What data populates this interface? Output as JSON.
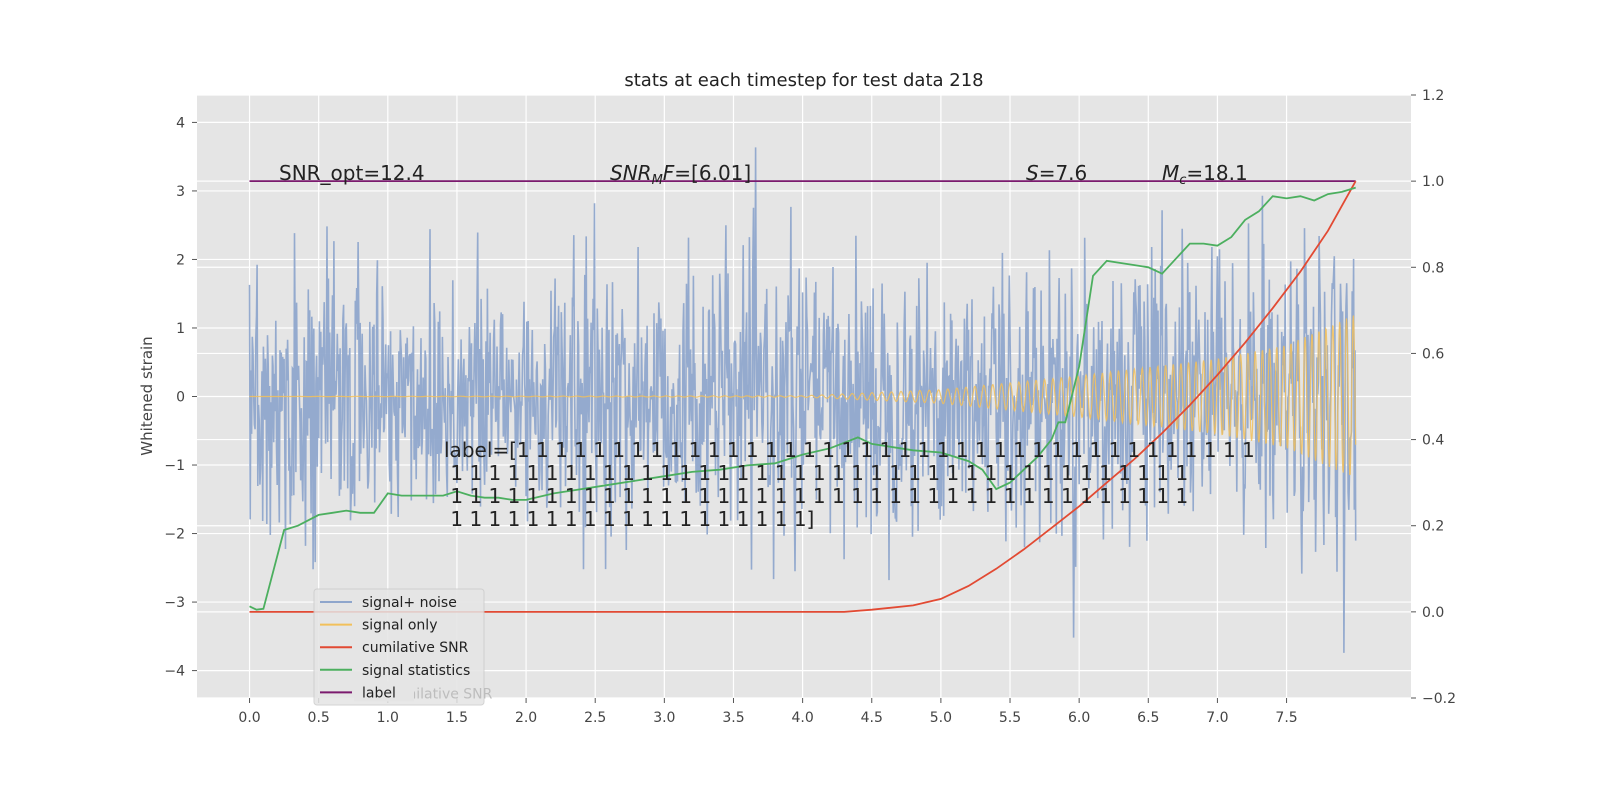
{
  "chart_data": {
    "type": "line",
    "title": "stats at each timestep for test data 218",
    "ylabel": "Whitened strain",
    "xlabel": "",
    "xlim": [
      -0.38,
      8.4
    ],
    "ylim": [
      -4.4,
      4.4
    ],
    "y2lim": [
      -0.2,
      1.2
    ],
    "grid": true,
    "x_ticks": [
      "0.0",
      "0.5",
      "1.0",
      "1.5",
      "2.0",
      "2.5",
      "3.0",
      "3.5",
      "4.0",
      "4.5",
      "5.0",
      "5.5",
      "6.0",
      "6.5",
      "7.0",
      "7.5"
    ],
    "y_ticks": [
      "4",
      "3",
      "2",
      "1",
      "0",
      "−1",
      "−2",
      "−3",
      "−4"
    ],
    "y2_ticks": [
      "1.2",
      "1.0",
      "0.8",
      "0.6",
      "0.4",
      "0.2",
      "0.0",
      "−0.2"
    ],
    "legend_position": "lower-left",
    "legend": [
      {
        "label": "signal+ noise",
        "color": "#8fa6cc"
      },
      {
        "label": "signal only",
        "color": "#f2c05b"
      },
      {
        "label": "cumilative SNR",
        "color": "#e24a33"
      },
      {
        "label": "signal statistics",
        "color": "#4caf5f"
      },
      {
        "label": "label",
        "color": "#7b1a6e"
      }
    ],
    "annotations": {
      "snr_opt": "SNR_opt=12.4",
      "snr_mf": "=[6.01]",
      "snr_mf_math": "SNR",
      "snr_mf_sub": "M",
      "snr_mf_tail": "F",
      "s": "=7.6",
      "s_math": "S",
      "mc": "=18.1",
      "mc_math": "M",
      "mc_sub": "c",
      "label_lines": [
        "label=[1 1 1 1 1 1 1 1 1 1 1 1 1 1 1 1 1 1 1 1 1 1 1 1 1 1 1 1 1 1 1 1 1 1 1 1 1 1 1",
        " 1 1 1 1 1 1 1 1 1 1 1 1 1 1 1 1 1 1 1 1 1 1 1 1 1 1 1 1 1 1 1 1 1 1 1 1 1 1 1",
        " 1 1 1 1 1 1 1 1 1 1 1 1 1 1 1 1 1 1 1 1 1 1 1 1 1 1 1 1 1 1 1 1 1 1 1 1 1 1 1",
        " 1 1 1 1 1 1 1 1 1 1 1 1 1 1 1 1 1 1 1]"
      ]
    },
    "series": [
      {
        "name": "signal statistics",
        "axis": "right",
        "x": [
          0.0,
          0.05,
          0.1,
          0.25,
          0.35,
          0.5,
          0.6,
          0.7,
          0.8,
          0.9,
          1.0,
          1.1,
          1.2,
          1.3,
          1.4,
          1.5,
          1.6,
          1.7,
          1.8,
          1.9,
          2.0,
          2.2,
          2.4,
          2.6,
          2.8,
          3.0,
          3.2,
          3.4,
          3.6,
          3.8,
          4.0,
          4.2,
          4.4,
          4.5,
          4.6,
          4.8,
          5.0,
          5.2,
          5.3,
          5.4,
          5.5,
          5.6,
          5.7,
          5.8,
          5.85,
          5.9,
          6.0,
          6.1,
          6.2,
          6.3,
          6.4,
          6.5,
          6.6,
          6.7,
          6.8,
          6.9,
          7.0,
          7.1,
          7.2,
          7.3,
          7.4,
          7.5,
          7.6,
          7.7,
          7.8,
          7.9,
          8.0
        ],
        "y": [
          0.013,
          0.005,
          0.007,
          0.19,
          0.2,
          0.225,
          0.23,
          0.235,
          0.23,
          0.23,
          0.275,
          0.27,
          0.27,
          0.27,
          0.27,
          0.28,
          0.27,
          0.265,
          0.265,
          0.26,
          0.26,
          0.275,
          0.285,
          0.295,
          0.305,
          0.315,
          0.325,
          0.33,
          0.34,
          0.345,
          0.365,
          0.38,
          0.405,
          0.39,
          0.385,
          0.375,
          0.37,
          0.35,
          0.33,
          0.285,
          0.3,
          0.33,
          0.36,
          0.4,
          0.44,
          0.44,
          0.57,
          0.78,
          0.815,
          0.81,
          0.805,
          0.8,
          0.785,
          0.82,
          0.855,
          0.855,
          0.85,
          0.87,
          0.91,
          0.93,
          0.965,
          0.96,
          0.965,
          0.955,
          0.97,
          0.975,
          0.985
        ]
      },
      {
        "name": "cumilative SNR",
        "axis": "right",
        "x": [
          0.0,
          1.0,
          2.0,
          3.0,
          4.0,
          4.3,
          4.5,
          4.8,
          5.0,
          5.2,
          5.4,
          5.6,
          5.8,
          6.0,
          6.2,
          6.4,
          6.6,
          6.8,
          7.0,
          7.2,
          7.4,
          7.6,
          7.8,
          8.0
        ],
        "y": [
          0.0,
          0.0,
          0.0,
          0.0,
          0.0,
          0.0,
          0.005,
          0.015,
          0.03,
          0.06,
          0.1,
          0.145,
          0.195,
          0.245,
          0.3,
          0.355,
          0.415,
          0.48,
          0.55,
          0.625,
          0.705,
          0.79,
          0.885,
          1.0
        ]
      },
      {
        "name": "label",
        "axis": "right",
        "x": [
          0.0,
          8.0
        ],
        "y": [
          1.0,
          1.0
        ]
      },
      {
        "name": "signal only",
        "axis": "left",
        "description_of_values": "chirp oscillating around 0; amplitude grows from ~0 at x=4 to ~1.2 at x=8",
        "amplitude_x": [
          0.0,
          4.0,
          5.0,
          6.0,
          7.0,
          7.5,
          8.0
        ],
        "amplitude_y": [
          0.0,
          0.01,
          0.1,
          0.3,
          0.55,
          0.75,
          1.2
        ]
      },
      {
        "name": "signal+ noise",
        "axis": "left",
        "description_of_values": "dense noisy trace roughly within ±2.5, spikes reaching about +3.9 and −4.0",
        "range": [
          -4.0,
          3.95
        ]
      }
    ]
  }
}
